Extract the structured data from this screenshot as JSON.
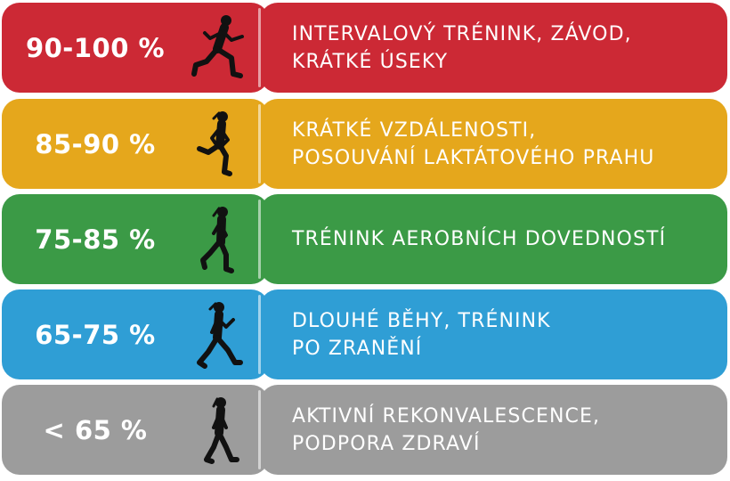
{
  "zones": [
    {
      "percent": "90-100 %",
      "desc": [
        "INTERVALOVÝ TRÉNINK, ZÁVOD,",
        "KRÁTKÉ ÚSEKY"
      ],
      "color": "#CC2935",
      "figure": "sprinting-runner-icon"
    },
    {
      "percent": "85-90 %",
      "desc": [
        "KRÁTKÉ VZDÁLENOSTI,",
        "POSOUVÁNÍ LAKTÁTOVÉHO PRAHU"
      ],
      "color": "#E5A71C",
      "figure": "running-woman-icon"
    },
    {
      "percent": "75-85 %",
      "desc": [
        "TRÉNINK AEROBNÍCH DOVEDNOSTÍ"
      ],
      "color": "#3B9A46",
      "figure": "jogging-woman-icon"
    },
    {
      "percent": "65-75 %",
      "desc": [
        "DLOUHÉ BĚHY, TRÉNINK",
        "PO ZRANĚNÍ"
      ],
      "color": "#2F9ED5",
      "figure": "fast-walking-woman-icon"
    },
    {
      "percent": "< 65 %",
      "desc": [
        "AKTIVNÍ REKONVALESCENCE,",
        "PODPORA ZDRAVÍ"
      ],
      "color": "#9C9C9C",
      "figure": "walking-woman-icon"
    }
  ]
}
